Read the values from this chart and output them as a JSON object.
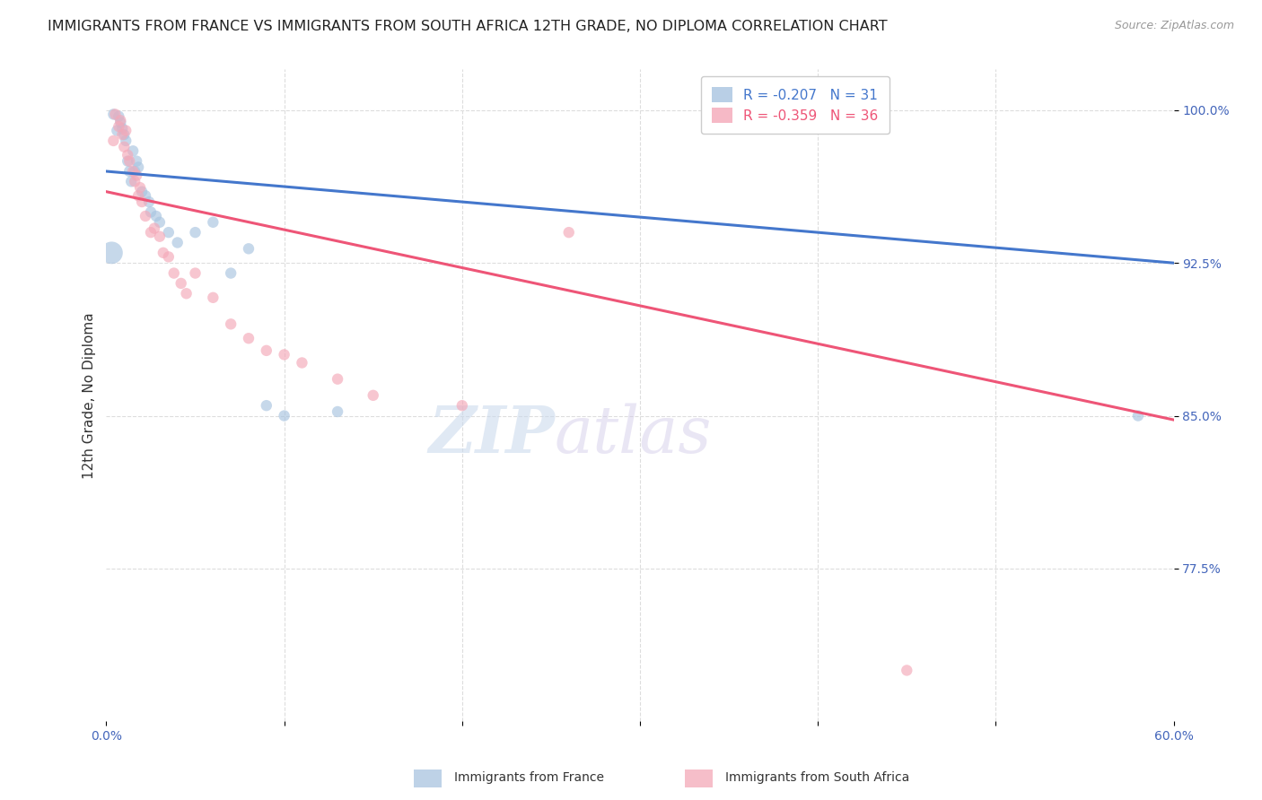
{
  "title": "IMMIGRANTS FROM FRANCE VS IMMIGRANTS FROM SOUTH AFRICA 12TH GRADE, NO DIPLOMA CORRELATION CHART",
  "source": "Source: ZipAtlas.com",
  "ylabel": "12th Grade, No Diploma",
  "watermark_zip": "ZIP",
  "watermark_atlas": "atlas",
  "xlim": [
    0.0,
    0.6
  ],
  "ylim": [
    0.7,
    1.02
  ],
  "xticks": [
    0.0,
    0.1,
    0.2,
    0.3,
    0.4,
    0.5,
    0.6
  ],
  "xticklabels": [
    "0.0%",
    "",
    "",
    "",
    "",
    "",
    "60.0%"
  ],
  "ytick_positions": [
    0.775,
    0.85,
    0.925,
    1.0
  ],
  "ytick_labels": [
    "77.5%",
    "85.0%",
    "92.5%",
    "100.0%"
  ],
  "france_R": -0.207,
  "france_N": 31,
  "sa_R": -0.359,
  "sa_N": 36,
  "france_color": "#A8C4E0",
  "sa_color": "#F4A8B8",
  "france_line_color": "#4477CC",
  "sa_line_color": "#EE5577",
  "legend_label_france": "Immigrants from France",
  "legend_label_sa": "Immigrants from South Africa",
  "france_line_x0": 0.0,
  "france_line_y0": 0.97,
  "france_line_x1": 0.6,
  "france_line_y1": 0.925,
  "sa_line_x0": 0.0,
  "sa_line_y0": 0.96,
  "sa_line_x1": 0.6,
  "sa_line_y1": 0.848,
  "france_x": [
    0.004,
    0.006,
    0.007,
    0.008,
    0.009,
    0.01,
    0.011,
    0.012,
    0.013,
    0.014,
    0.015,
    0.016,
    0.017,
    0.018,
    0.02,
    0.022,
    0.024,
    0.025,
    0.028,
    0.03,
    0.035,
    0.04,
    0.05,
    0.06,
    0.07,
    0.08,
    0.09,
    0.1,
    0.13,
    0.003,
    0.58
  ],
  "france_y": [
    0.998,
    0.99,
    0.997,
    0.994,
    0.991,
    0.988,
    0.985,
    0.975,
    0.97,
    0.965,
    0.98,
    0.97,
    0.975,
    0.972,
    0.96,
    0.958,
    0.955,
    0.95,
    0.948,
    0.945,
    0.94,
    0.935,
    0.94,
    0.945,
    0.92,
    0.932,
    0.855,
    0.85,
    0.852,
    0.93,
    0.85
  ],
  "france_sizes": [
    80,
    80,
    80,
    80,
    80,
    80,
    80,
    80,
    80,
    80,
    80,
    80,
    80,
    80,
    80,
    80,
    80,
    80,
    80,
    80,
    80,
    80,
    80,
    80,
    80,
    80,
    80,
    80,
    80,
    320,
    80
  ],
  "sa_x": [
    0.004,
    0.005,
    0.007,
    0.008,
    0.009,
    0.01,
    0.011,
    0.012,
    0.013,
    0.015,
    0.016,
    0.017,
    0.018,
    0.019,
    0.02,
    0.022,
    0.025,
    0.027,
    0.03,
    0.032,
    0.035,
    0.038,
    0.042,
    0.045,
    0.05,
    0.06,
    0.07,
    0.08,
    0.09,
    0.1,
    0.11,
    0.13,
    0.15,
    0.2,
    0.26,
    0.45
  ],
  "sa_y": [
    0.985,
    0.998,
    0.992,
    0.995,
    0.988,
    0.982,
    0.99,
    0.978,
    0.975,
    0.97,
    0.965,
    0.968,
    0.958,
    0.962,
    0.955,
    0.948,
    0.94,
    0.942,
    0.938,
    0.93,
    0.928,
    0.92,
    0.915,
    0.91,
    0.92,
    0.908,
    0.895,
    0.888,
    0.882,
    0.88,
    0.876,
    0.868,
    0.86,
    0.855,
    0.94,
    0.725
  ],
  "sa_sizes": [
    80,
    80,
    80,
    80,
    80,
    80,
    80,
    80,
    80,
    80,
    80,
    80,
    80,
    80,
    80,
    80,
    80,
    80,
    80,
    80,
    80,
    80,
    80,
    80,
    80,
    80,
    80,
    80,
    80,
    80,
    80,
    80,
    80,
    80,
    80,
    80
  ],
  "grid_color": "#DDDDDD",
  "background_color": "#FFFFFF",
  "title_fontsize": 11.5,
  "axis_label_fontsize": 11,
  "tick_fontsize": 10,
  "legend_fontsize": 11
}
